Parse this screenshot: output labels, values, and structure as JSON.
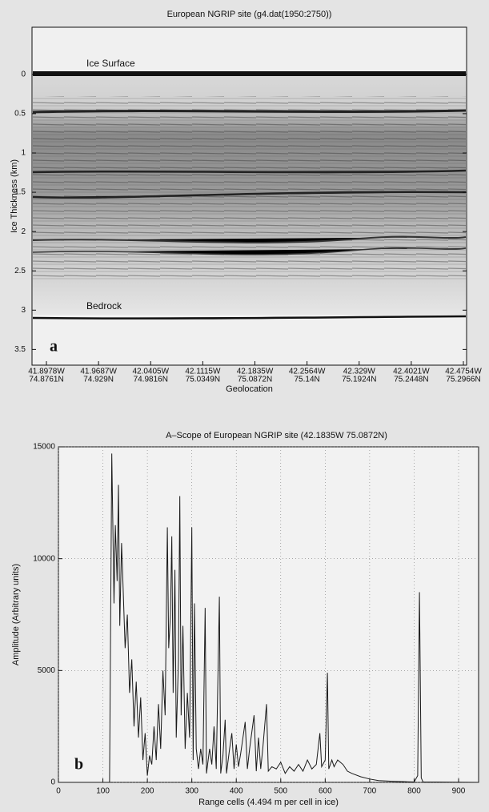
{
  "chart_data": [
    {
      "type": "radargram",
      "title": "European NGRIP  site (g4.dat(1950:2750))",
      "ylabel": "Ice Thickness (km)",
      "xlabel": "Geolocation",
      "ylim": [
        -0.6,
        3.7
      ],
      "y_inverted": true,
      "yticks": [
        0,
        0.5,
        1,
        1.5,
        2,
        2.5,
        3,
        3.5
      ],
      "geolocations": [
        {
          "lon": "41.8978W",
          "lat": "74.8761N"
        },
        {
          "lon": "41.9687W",
          "lat": "74.929N"
        },
        {
          "lon": "42.0405W",
          "lat": "74.9816N"
        },
        {
          "lon": "42.1115W",
          "lat": "75.0349N"
        },
        {
          "lon": "42.1835W",
          "lat": "75.0872N"
        },
        {
          "lon": "42.2564W",
          "lat": "75.14N"
        },
        {
          "lon": "42.329W",
          "lat": "75.1924N"
        },
        {
          "lon": "42.4021W",
          "lat": "75.2448N"
        },
        {
          "lon": "42.4754W",
          "lat": "75.2966N"
        }
      ],
      "annotations": [
        "Ice Surface",
        "Bedrock"
      ],
      "panel_label": "a"
    },
    {
      "type": "line",
      "title": "A–Scope of European NGRIP site (42.1835W 75.0872N)",
      "ylabel": "Amplitude (Arbitrary units)",
      "xlabel": "Range cells (4.494 m per cell in ice)",
      "xlim": [
        0,
        945
      ],
      "ylim": [
        0,
        15000
      ],
      "xticks": [
        0,
        100,
        200,
        300,
        400,
        500,
        600,
        700,
        800,
        900
      ],
      "yticks": [
        0,
        5000,
        10000,
        15000
      ],
      "grid": true,
      "color": "#1a1a1a",
      "panel_label": "b",
      "x": [
        0,
        115,
        120,
        125,
        128,
        132,
        135,
        138,
        142,
        145,
        150,
        155,
        160,
        165,
        170,
        175,
        180,
        185,
        190,
        195,
        200,
        205,
        210,
        215,
        220,
        225,
        230,
        235,
        240,
        245,
        248,
        252,
        255,
        258,
        262,
        265,
        270,
        273,
        276,
        280,
        285,
        290,
        295,
        300,
        303,
        306,
        310,
        315,
        320,
        325,
        330,
        333,
        340,
        345,
        350,
        355,
        362,
        365,
        370,
        375,
        378,
        385,
        390,
        395,
        400,
        405,
        410,
        420,
        425,
        430,
        440,
        445,
        450,
        455,
        460,
        468,
        472,
        480,
        490,
        500,
        510,
        520,
        530,
        540,
        550,
        560,
        570,
        580,
        588,
        592,
        600,
        605,
        608,
        615,
        620,
        628,
        640,
        650,
        660,
        680,
        700,
        720,
        750,
        780,
        800,
        808,
        812,
        816,
        820,
        945
      ],
      "values": [
        0,
        0,
        14700,
        8000,
        11500,
        9000,
        13300,
        7000,
        10700,
        9000,
        6000,
        7500,
        4000,
        5500,
        2500,
        4500,
        2000,
        3800,
        1000,
        2200,
        300,
        1200,
        800,
        2500,
        1000,
        3500,
        1500,
        5000,
        3000,
        11400,
        6000,
        7500,
        11000,
        4000,
        9500,
        2000,
        5500,
        12800,
        3000,
        7000,
        1500,
        4000,
        2000,
        11400,
        1000,
        8000,
        1500,
        600,
        1500,
        800,
        7800,
        400,
        1500,
        800,
        2500,
        600,
        8300,
        400,
        1200,
        2800,
        400,
        1500,
        2200,
        600,
        1700,
        700,
        1300,
        2700,
        600,
        1500,
        3000,
        500,
        2000,
        600,
        1600,
        3500,
        500,
        700,
        600,
        900,
        400,
        700,
        500,
        800,
        500,
        1000,
        600,
        800,
        2200,
        700,
        1000,
        4900,
        600,
        1000,
        700,
        1000,
        800,
        500,
        400,
        250,
        150,
        80,
        50,
        30,
        20,
        300,
        8500,
        200,
        20,
        0
      ]
    }
  ]
}
